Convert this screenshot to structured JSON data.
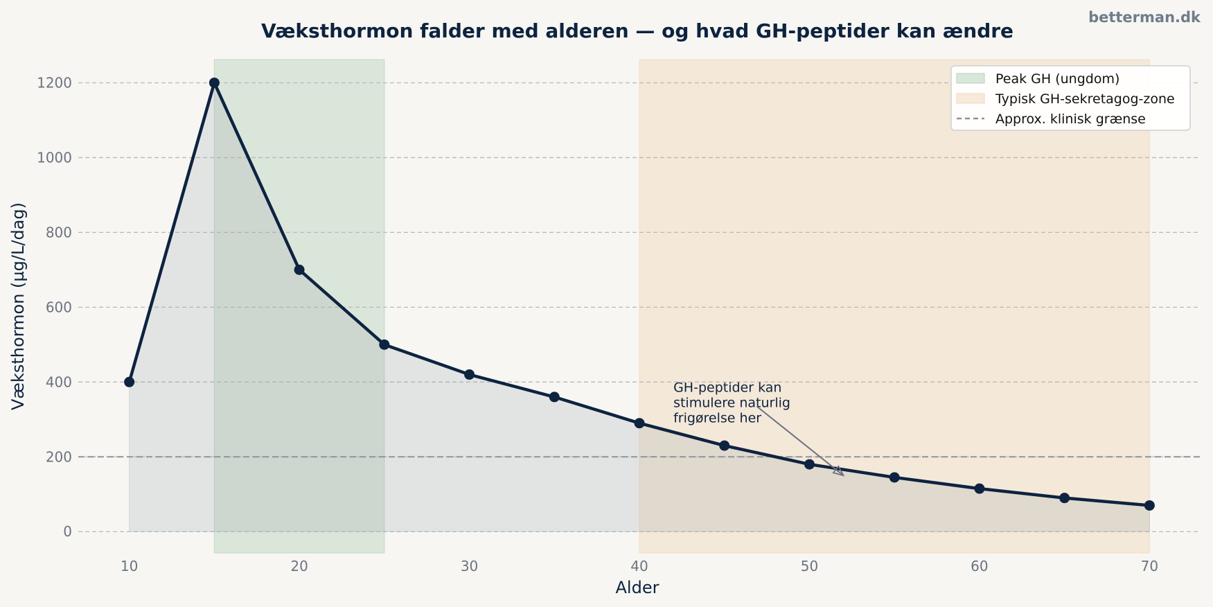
{
  "watermark": "betterman.dk",
  "colors": {
    "line": "#0d2340",
    "area_fill": "#9aa3ad",
    "peak_zone": "#b7d3bd",
    "secretagog_zone": "#f1d9bd",
    "threshold": "#8d939b",
    "grid": "#b8b8b8"
  },
  "legend": {
    "placement": "top-right",
    "items": [
      {
        "label": "Peak GH (ungdom)",
        "kind": "patch",
        "color": "#b7d3bd"
      },
      {
        "label": "Typisk GH-sekretagog-zone",
        "kind": "patch",
        "color": "#f1d9bd"
      },
      {
        "label": "Approx. klinisk grænse",
        "kind": "dashed",
        "color": "#8d939b"
      }
    ]
  },
  "annotation": {
    "lines": [
      "GH-peptider kan",
      "stimulere naturlig",
      "frigørelse her"
    ],
    "text_at": [
      42,
      400
    ],
    "arrow_from": [
      46.9,
      335
    ],
    "arrow_to": [
      52,
      150
    ]
  },
  "chart_data": {
    "type": "line",
    "title": "Væksthormon falder med alderen — og hvad GH-peptider kan ændre",
    "xlabel": "Alder",
    "ylabel": "Væksthormon (µg/L/dag)",
    "xlim": [
      7,
      73
    ],
    "ylim": [
      -57,
      1262
    ],
    "xticks": [
      10,
      20,
      30,
      40,
      50,
      60,
      70
    ],
    "yticks": [
      0,
      200,
      400,
      600,
      800,
      1000,
      1200
    ],
    "grid": true,
    "series": [
      {
        "x": [
          10,
          15,
          20,
          25,
          30,
          35,
          40,
          45,
          50,
          55,
          60,
          65,
          70
        ],
        "y": [
          400,
          1200,
          700,
          500,
          420,
          360,
          290,
          230,
          180,
          145,
          115,
          90,
          70
        ]
      }
    ],
    "spans": [
      {
        "from": 15,
        "to": 25,
        "label": "Peak GH (ungdom)"
      },
      {
        "from": 40,
        "to": 70,
        "label": "Typisk GH-sekretagog-zone"
      }
    ],
    "threshold": {
      "y": 200,
      "label": "Approx. klinisk grænse"
    }
  }
}
